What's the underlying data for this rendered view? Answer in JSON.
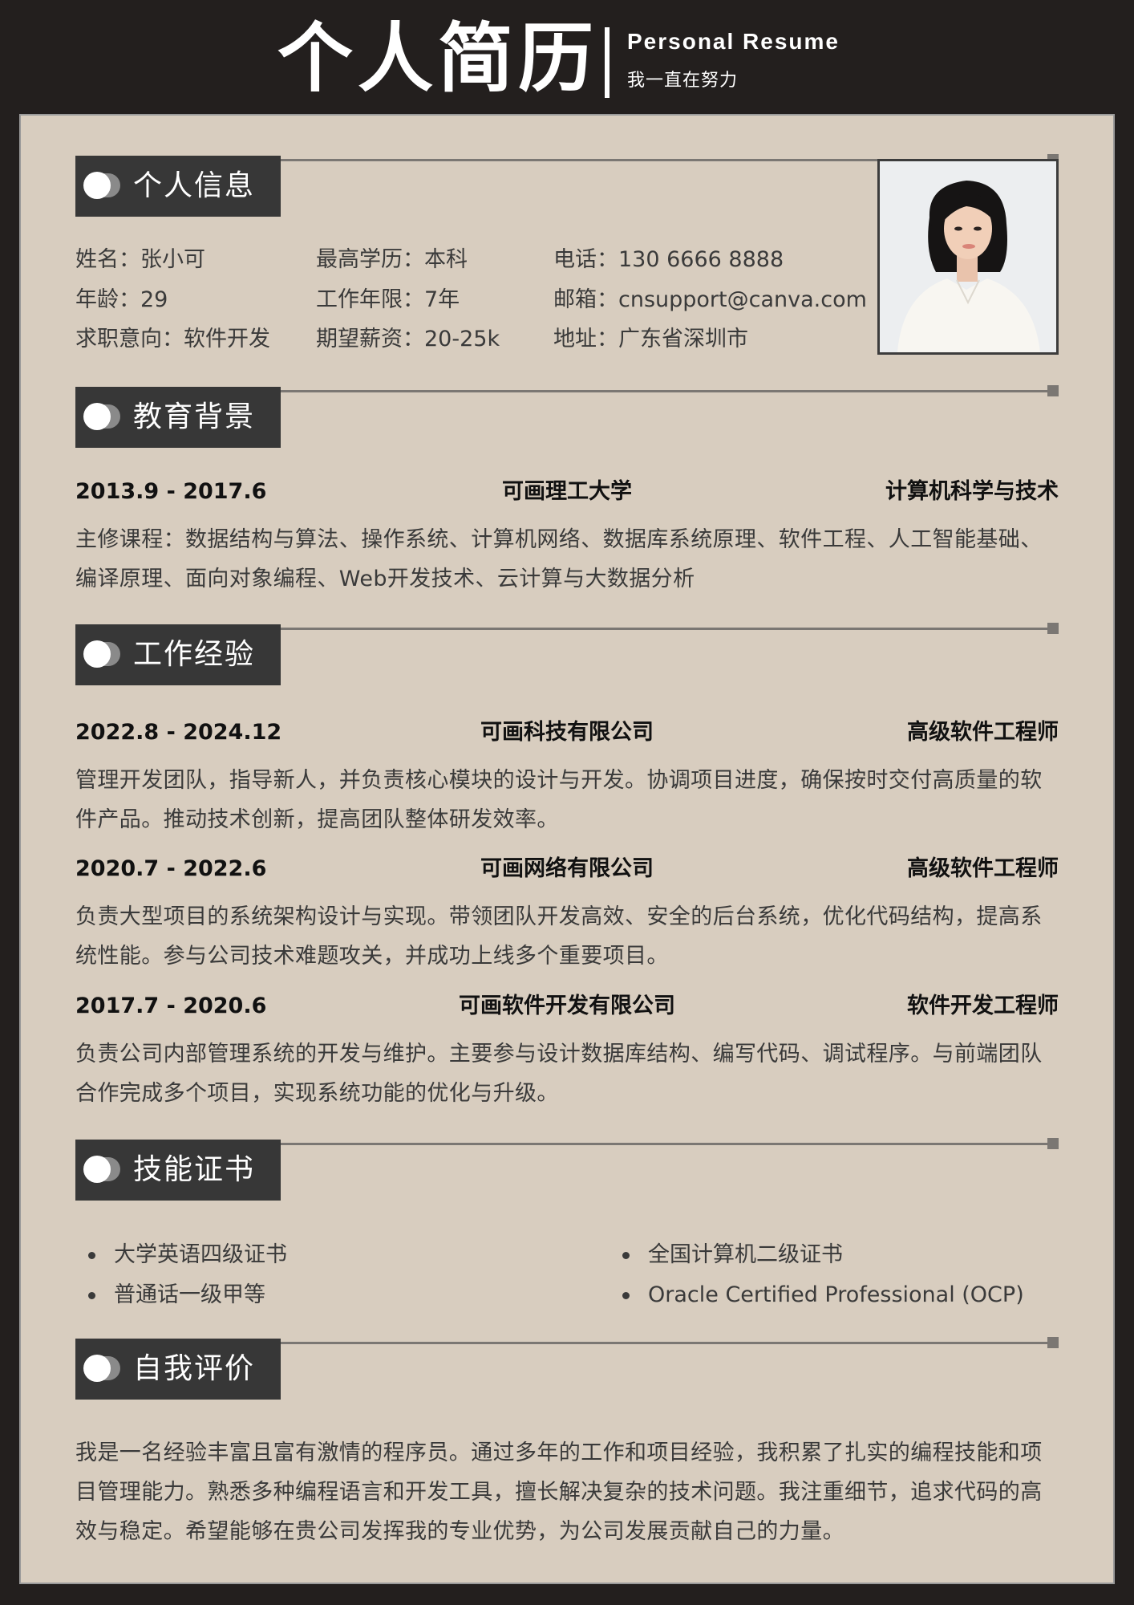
{
  "header": {
    "title": "个人简历",
    "subtitle_en": "Personal Resume",
    "slogan": "我一直在努力"
  },
  "sections": {
    "personal": "个人信息",
    "education": "教育背景",
    "work": "工作经验",
    "skills": "技能证书",
    "self": "自我评价"
  },
  "personal": {
    "name": "姓名：张小可",
    "age": "年龄：29",
    "intent": "求职意向：软件开发",
    "degree": "最高学历：本科",
    "years": "工作年限：7年",
    "salary": "期望薪资：20-25k",
    "phone": "电话：130 6666 8888",
    "email": "邮箱：cnsupport@canva.com",
    "address": "地址：广东省深圳市"
  },
  "education": {
    "date": "2013.9 - 2017.6",
    "school": "可画理工大学",
    "major": "计算机科学与技术",
    "desc": "主修课程：数据结构与算法、操作系统、计算机网络、数据库系统原理、软件工程、人工智能基础、编译原理、面向对象编程、Web开发技术、云计算与大数据分析"
  },
  "work": [
    {
      "date": "2022.8 - 2024.12",
      "company": "可画科技有限公司",
      "role": "高级软件工程师",
      "desc": "管理开发团队，指导新人，并负责核心模块的设计与开发。协调项目进度，确保按时交付高质量的软件产品。推动技术创新，提高团队整体研发效率。"
    },
    {
      "date": "2020.7 - 2022.6",
      "company": "可画网络有限公司",
      "role": "高级软件工程师",
      "desc": "负责大型项目的系统架构设计与实现。带领团队开发高效、安全的后台系统，优化代码结构，提高系统性能。参与公司技术难题攻关，并成功上线多个重要项目。"
    },
    {
      "date": "2017.7 - 2020.6",
      "company": "可画软件开发有限公司",
      "role": "软件开发工程师",
      "desc": "负责公司内部管理系统的开发与维护。主要参与设计数据库结构、编写代码、调试程序。与前端团队合作完成多个项目，实现系统功能的优化与升级。"
    }
  ],
  "skills": [
    "大学英语四级证书",
    "普通话一级甲等",
    "全国计算机二级证书",
    "Oracle Certified Professional (OCP)"
  ],
  "self_eval": "我是一名经验丰富且富有激情的程序员。通过多年的工作和项目经验，我积累了扎实的编程技能和项目管理能力。熟悉多种编程语言和开发工具，擅长解决复杂的技术问题。我注重细节，追求代码的高效与稳定。希望能够在贵公司发挥我的专业优势，为公司发展贡献自己的力量。"
}
